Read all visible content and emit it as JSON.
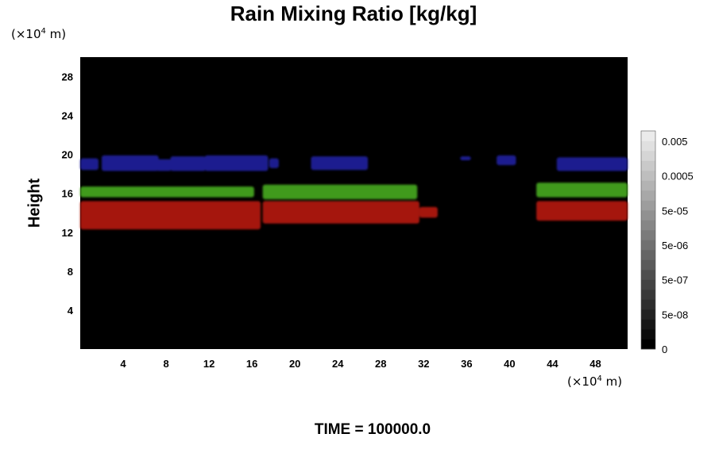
{
  "title": "Rain Mixing Ratio [kg/kg]",
  "time_label": "TIME = 100000.0",
  "y_unit": {
    "prefix": "(×10",
    "exp": "4",
    "suffix": " m)"
  },
  "x_unit": {
    "prefix": "(×10",
    "exp": "4",
    "suffix": " m)"
  },
  "colors": {
    "background": "#000000",
    "blue": "#1a1f8f",
    "green": "#3f9a1c",
    "red": "#a51510"
  },
  "chart_data": {
    "type": "heatmap",
    "title": "Rain Mixing Ratio [kg/kg]",
    "xlabel": "",
    "ylabel": "Height",
    "xlim": [
      0,
      51
    ],
    "ylim": [
      0,
      30
    ],
    "x_ticks": [
      4,
      8,
      12,
      16,
      20,
      24,
      28,
      32,
      36,
      40,
      44,
      48
    ],
    "y_ticks": [
      4,
      8,
      12,
      16,
      20,
      24,
      28
    ],
    "colorbar": {
      "labels": [
        "0.005",
        "0.0005",
        "5e-05",
        "5e-06",
        "5e-07",
        "5e-08",
        "0"
      ],
      "levels": 22
    },
    "layers": [
      {
        "color": "blue",
        "segments": [
          {
            "x": [
              0,
              1.7
            ],
            "y": [
              18.4,
              19.6
            ]
          },
          {
            "x": [
              2,
              7.3
            ],
            "y": [
              18.3,
              19.9
            ]
          },
          {
            "x": [
              7.1,
              8.5
            ],
            "y": [
              18.3,
              19.5
            ]
          },
          {
            "x": [
              8.4,
              11.7
            ],
            "y": [
              18.3,
              19.8
            ]
          },
          {
            "x": [
              11.6,
              17.5
            ],
            "y": [
              18.3,
              19.9
            ]
          },
          {
            "x": [
              17.6,
              18.5
            ],
            "y": [
              18.6,
              19.6
            ]
          },
          {
            "x": [
              21.5,
              26.8
            ],
            "y": [
              18.4,
              19.8
            ]
          },
          {
            "x": [
              35.4,
              36.4
            ],
            "y": [
              19.4,
              19.8
            ]
          },
          {
            "x": [
              38.8,
              40.6
            ],
            "y": [
              18.9,
              19.9
            ]
          },
          {
            "x": [
              44.4,
              51
            ],
            "y": [
              18.3,
              19.7
            ]
          }
        ]
      },
      {
        "color": "green",
        "segments": [
          {
            "x": [
              0,
              16.2
            ],
            "y": [
              15.6,
              16.7
            ]
          },
          {
            "x": [
              17,
              31.4
            ],
            "y": [
              15.4,
              16.9
            ]
          },
          {
            "x": [
              42.5,
              51
            ],
            "y": [
              15.6,
              17.1
            ]
          }
        ]
      },
      {
        "color": "red",
        "segments": [
          {
            "x": [
              0,
              16.8
            ],
            "y": [
              12.3,
              15.2
            ]
          },
          {
            "x": [
              17,
              31.6
            ],
            "y": [
              12.9,
              15.2
            ]
          },
          {
            "x": [
              31.6,
              33.3
            ],
            "y": [
              13.5,
              14.6
            ]
          },
          {
            "x": [
              42.5,
              51
            ],
            "y": [
              13.2,
              15.2
            ]
          }
        ]
      }
    ]
  }
}
